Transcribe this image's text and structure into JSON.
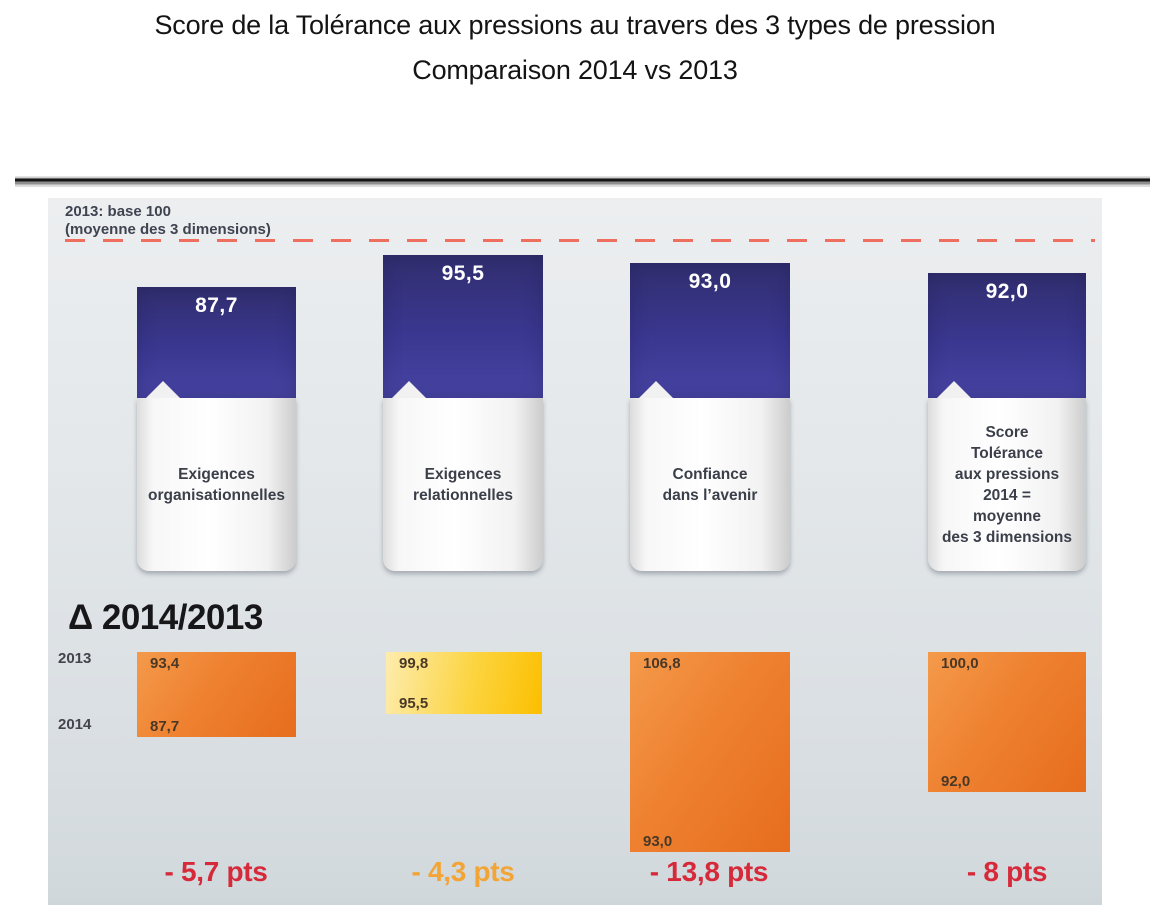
{
  "page": {
    "title_line1": "Score de la Tolérance aux pressions au travers des 3 types de pression",
    "title_line2": "Comparaison 2014 vs 2013"
  },
  "chart": {
    "base_note_line1": "2013: base 100",
    "base_note_line2": "(moyenne des 3 dimensions)",
    "delta_heading": "Δ 2014/2013",
    "row_label_2013": "2013",
    "row_label_2014": "2014"
  },
  "columns": [
    {
      "score": "87,7",
      "label": "Exigences\norganisationnelles",
      "delta_top": "93,4",
      "delta_bottom": "87,7",
      "delta_label": "- 5,7 pts"
    },
    {
      "score": "95,5",
      "label": "Exigences\nrelationnelles",
      "delta_top": "99,8",
      "delta_bottom": "95,5",
      "delta_label": "- 4,3 pts"
    },
    {
      "score": "93,0",
      "label": "Confiance\ndans l’avenir",
      "delta_top": "106,8",
      "delta_bottom": "93,0",
      "delta_label": "- 13,8 pts"
    },
    {
      "score": "92,0",
      "label": "Score\nTolérance\naux pressions\n2014 =\nmoyenne\ndes 3 dimensions",
      "delta_top": "100,0",
      "delta_bottom": "92,0",
      "delta_label": "- 8 pts"
    }
  ],
  "colors": {
    "bar_blue": "#3a3790",
    "delta_box_orange": "#ee7b26",
    "delta_box_yellow": "#fbc21a",
    "delta_text_red": "#d6293a",
    "delta_text_amber": "#f2a536",
    "baseline_dash_red": "#ee6f60",
    "chart_background": "#dfe4e8"
  },
  "chart_data": {
    "type": "bar",
    "title": "Score de la Tolérance aux pressions au travers des 3 types de pression",
    "subtitle": "Comparaison 2014 vs 2013",
    "baseline_note": "2013: base 100 (moyenne des 3 dimensions)",
    "baseline_value": 100,
    "categories": [
      "Exigences organisationnelles",
      "Exigences relationnelles",
      "Confiance dans l’avenir",
      "Score Tolérance aux pressions 2014 = moyenne des 3 dimensions"
    ],
    "series": [
      {
        "name": "2013",
        "values": [
          93.4,
          99.8,
          106.8,
          100.0
        ]
      },
      {
        "name": "2014",
        "values": [
          87.7,
          95.5,
          93.0,
          92.0
        ]
      }
    ],
    "delta_2014_vs_2013": [
      -5.7,
      -4.3,
      -13.8,
      -8
    ],
    "ylim": [
      80,
      107
    ],
    "grid": false,
    "legend_position": "left-row-labels"
  }
}
